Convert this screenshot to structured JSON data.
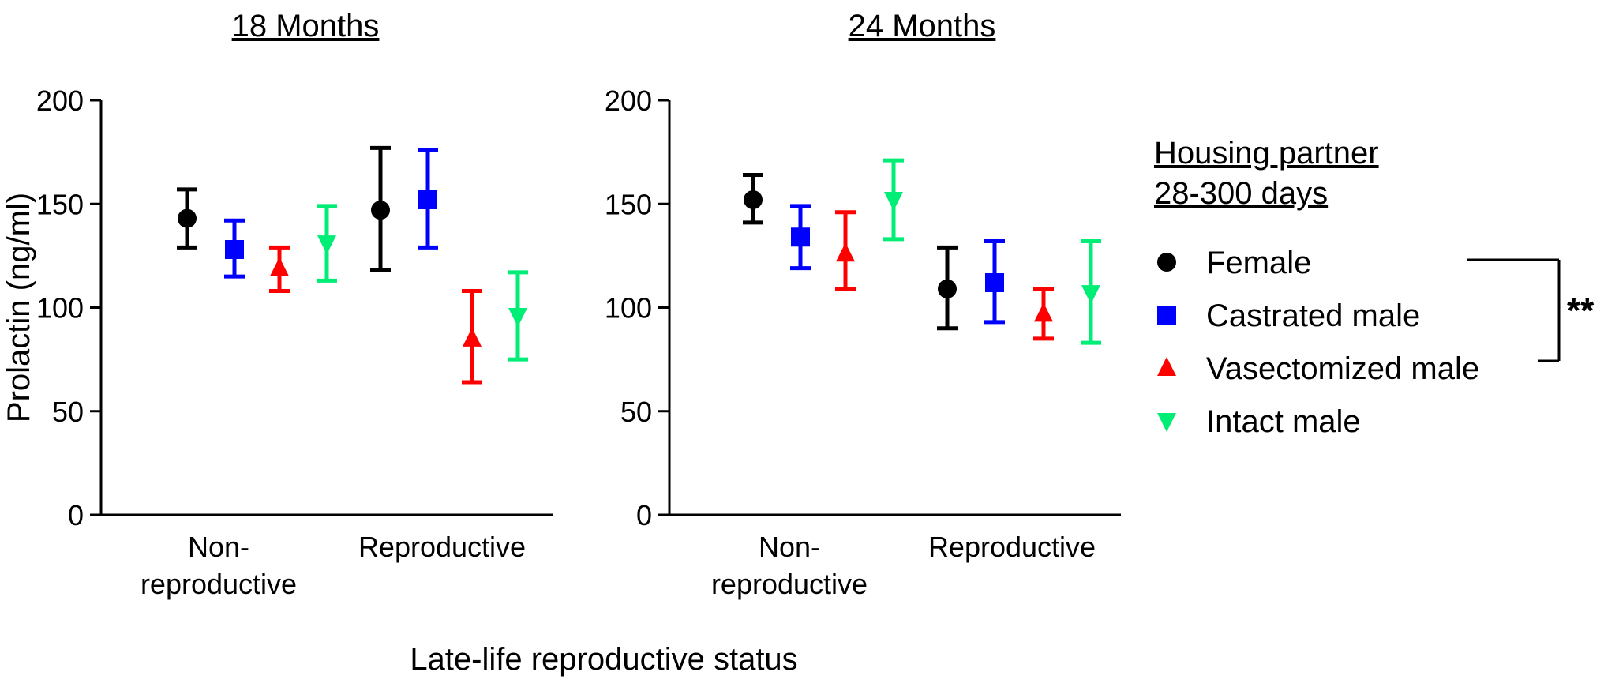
{
  "chart_data": [
    {
      "type": "scatter",
      "title": "18 Months",
      "ylabel": "Prolactin (ng/ml)",
      "ylim": [
        0,
        200
      ],
      "yticks": [
        0,
        50,
        100,
        150,
        200
      ],
      "categories": [
        "Non-\nreproductive",
        "Reproductive"
      ],
      "error_bars": true,
      "series": [
        {
          "name": "Female",
          "values": [
            143,
            147
          ],
          "lower": [
            129,
            118
          ],
          "upper": [
            157,
            177
          ]
        },
        {
          "name": "Castrated male",
          "values": [
            128,
            152
          ],
          "lower": [
            115,
            129
          ],
          "upper": [
            142,
            176
          ]
        },
        {
          "name": "Vasectomized male",
          "values": [
            119,
            85
          ],
          "lower": [
            108,
            64
          ],
          "upper": [
            129,
            108
          ]
        },
        {
          "name": "Intact male",
          "values": [
            131,
            96
          ],
          "lower": [
            113,
            75
          ],
          "upper": [
            149,
            117
          ]
        }
      ]
    },
    {
      "type": "scatter",
      "title": "24 Months",
      "ylabel": "",
      "ylim": [
        0,
        200
      ],
      "yticks": [
        0,
        50,
        100,
        150,
        200
      ],
      "categories": [
        "Non-\nreproductive",
        "Reproductive"
      ],
      "error_bars": true,
      "series": [
        {
          "name": "Female",
          "values": [
            152,
            109
          ],
          "lower": [
            141,
            90
          ],
          "upper": [
            164,
            129
          ]
        },
        {
          "name": "Castrated male",
          "values": [
            134,
            112
          ],
          "lower": [
            119,
            93
          ],
          "upper": [
            149,
            132
          ]
        },
        {
          "name": "Vasectomized male",
          "values": [
            126,
            97
          ],
          "lower": [
            109,
            85
          ],
          "upper": [
            146,
            109
          ]
        },
        {
          "name": "Intact male",
          "values": [
            152,
            107
          ],
          "lower": [
            133,
            83
          ],
          "upper": [
            171,
            132
          ]
        }
      ]
    }
  ],
  "xlabel": "Late-life reproductive status",
  "legend": {
    "title_line1": "Housing partner",
    "title_line2": "28-300 days",
    "placement": "right",
    "items": [
      {
        "name": "Female",
        "marker": "circle",
        "color": "#000000"
      },
      {
        "name": "Castrated male",
        "marker": "square",
        "color": "#0000FF"
      },
      {
        "name": "Vasectomized male",
        "marker": "triangle-up",
        "color": "#FF0000"
      },
      {
        "name": "Intact male",
        "marker": "triangle-down",
        "color": "#00EE76"
      }
    ]
  },
  "annotation": {
    "text": "**",
    "color": "#FF0000",
    "between": [
      "Female",
      "Vasectomized male"
    ]
  }
}
